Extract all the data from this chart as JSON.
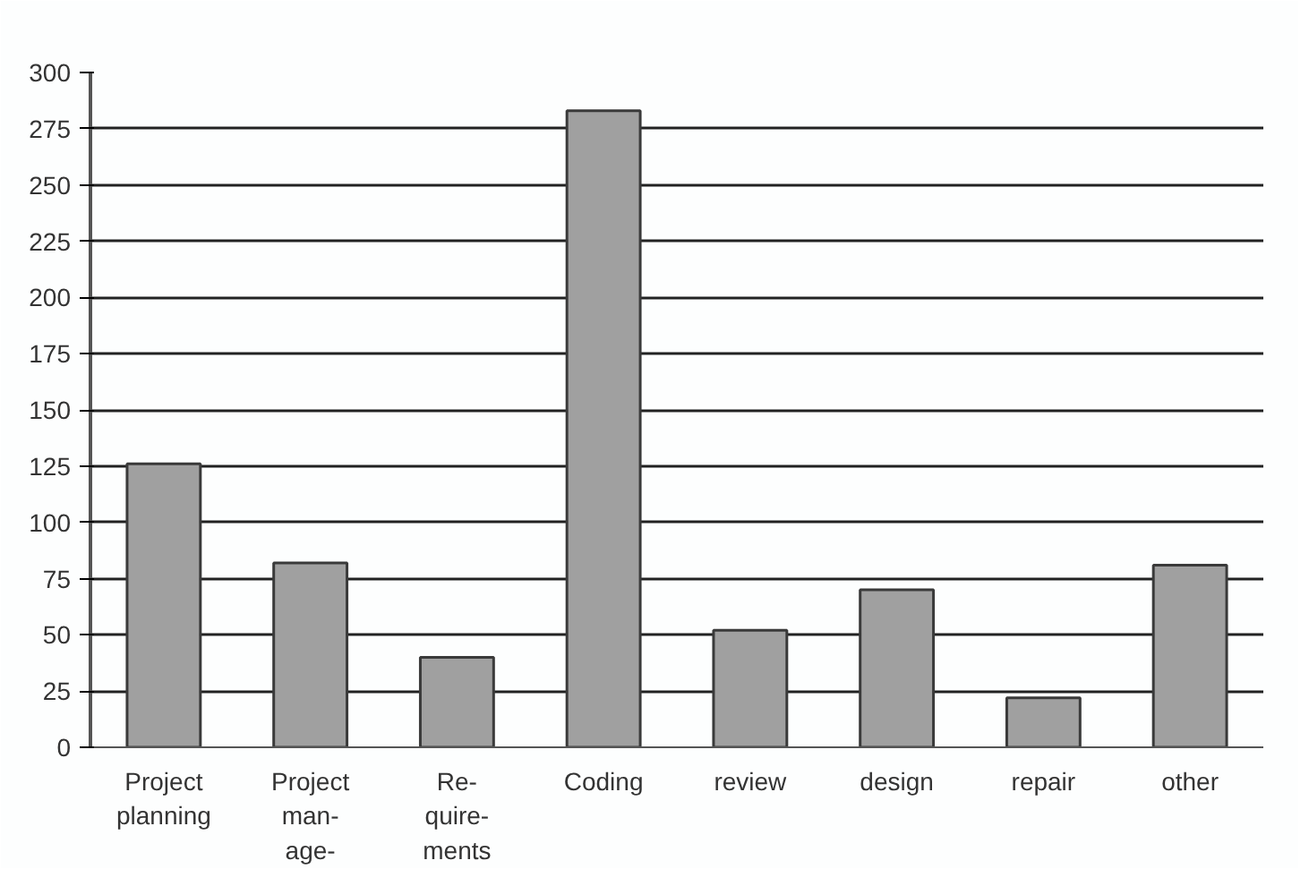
{
  "chart_data": {
    "type": "bar",
    "categories": [
      "Project\nplanning",
      "Project\nman-\nage-",
      "Re-\nquire-\nments",
      "Coding",
      "review",
      "design",
      "repair",
      "other"
    ],
    "values": [
      126,
      82,
      40,
      283,
      52,
      70,
      22,
      81
    ],
    "color": "#a0a0a0",
    "ylim": [
      0,
      300
    ],
    "yticks": [
      0,
      25,
      50,
      75,
      100,
      125,
      150,
      175,
      200,
      225,
      250,
      275,
      300
    ],
    "grid": "y"
  }
}
